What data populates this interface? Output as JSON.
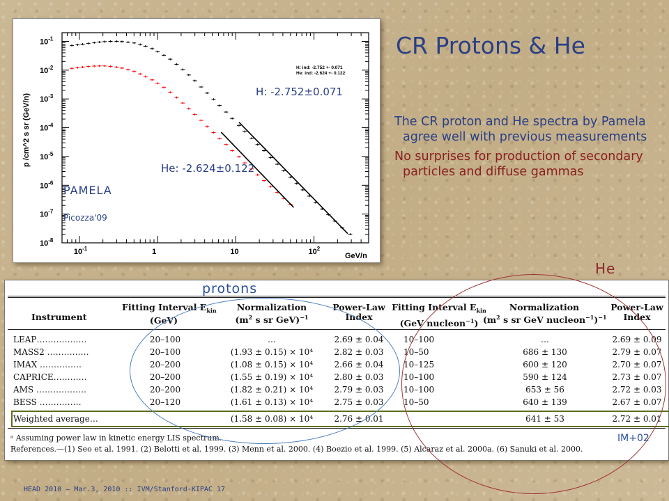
{
  "slide": {
    "title": "CR Protons & He",
    "bullets": [
      "The CR proton and He spectra by Pamela agree well with previous measurements",
      "No surprises for production of secondary particles and diffuse gammas"
    ],
    "footer": "HEAD 2010 – Mar.3, 2010 :: IVM/Stanford-KIPAC 17",
    "colors": {
      "title": "#2a3f86",
      "bullet2": "#8a2020",
      "protons_ring": "#4d7fbf",
      "he_ring": "#a03535",
      "highlight": "#5c6e1e"
    }
  },
  "chart_data": {
    "type": "scatter",
    "ylabel": "p /cm^2 s sr (GeV/n)",
    "xlabel": "GeV/n",
    "x_scale": "log",
    "y_scale": "log",
    "xlim": [
      0.06,
      500
    ],
    "ylim": [
      1e-08,
      0.2
    ],
    "x_ticks": [
      {
        "label": "10",
        "sup": "-1"
      },
      {
        "label": "1",
        "sup": ""
      },
      {
        "label": "10",
        "sup": ""
      },
      {
        "label": "10",
        "sup": "2"
      }
    ],
    "y_ticks": [
      {
        "label": "10",
        "sup": "-1"
      },
      {
        "label": "10",
        "sup": "-2"
      },
      {
        "label": "10",
        "sup": "-3"
      },
      {
        "label": "10",
        "sup": "-4"
      },
      {
        "label": "10",
        "sup": "-5"
      },
      {
        "label": "10",
        "sup": "-6"
      },
      {
        "label": "10",
        "sup": "-7"
      },
      {
        "label": "10",
        "sup": "-8"
      }
    ],
    "legend": {
      "placement": "top-right",
      "lines": [
        "H: ind: -2.752 +- 0.071",
        "He: ind: -2.624 +- 0.122"
      ]
    },
    "annotations": {
      "h_fit": "H: -2.752±0.071",
      "he_fit": "He: -2.624±0.122",
      "experiment": "PAMELA",
      "reference": "Picozza'09"
    },
    "series": [
      {
        "name": "H",
        "color": "#000000",
        "points": [
          [
            0.08,
            0.072
          ],
          [
            0.095,
            0.076
          ],
          [
            0.11,
            0.08
          ],
          [
            0.13,
            0.085
          ],
          [
            0.155,
            0.09
          ],
          [
            0.18,
            0.095
          ],
          [
            0.21,
            0.098
          ],
          [
            0.25,
            0.1
          ],
          [
            0.3,
            0.1
          ],
          [
            0.35,
            0.098
          ],
          [
            0.42,
            0.094
          ],
          [
            0.5,
            0.088
          ],
          [
            0.6,
            0.078
          ],
          [
            0.7,
            0.068
          ],
          [
            0.85,
            0.056
          ],
          [
            1.0,
            0.044
          ],
          [
            1.2,
            0.033
          ],
          [
            1.45,
            0.024
          ],
          [
            1.75,
            0.016
          ],
          [
            2.1,
            0.0105
          ],
          [
            2.5,
            0.0068
          ],
          [
            3.0,
            0.0043
          ],
          [
            3.6,
            0.0026
          ],
          [
            4.3,
            0.0016
          ],
          [
            5.2,
            0.00097
          ],
          [
            6.2,
            0.00059
          ],
          [
            7.5,
            0.00035
          ],
          [
            9.0,
            0.00021
          ],
          [
            11,
            0.00012
          ],
          [
            13,
            7.4e-05
          ],
          [
            16,
            4.3e-05
          ],
          [
            19,
            2.6e-05
          ],
          [
            23,
            1.6e-05
          ],
          [
            28,
            9.2e-06
          ],
          [
            34,
            5.4e-06
          ],
          [
            41,
            3.2e-06
          ],
          [
            50,
            1.9e-06
          ],
          [
            60,
            1.15e-06
          ],
          [
            72,
            6.9e-07
          ],
          [
            87,
            4.2e-07
          ],
          [
            105,
            2.5e-07
          ],
          [
            127,
            1.5e-07
          ],
          [
            153,
            9.5e-08
          ],
          [
            185,
            5.7e-08
          ],
          [
            230,
            3.3e-08
          ],
          [
            290,
            2e-08
          ]
        ],
        "fit": {
          "from": [
            11,
            0.000155
          ],
          "to": [
            270,
            2.1e-08
          ]
        }
      },
      {
        "name": "He",
        "color": "#ff0000",
        "points": [
          [
            0.08,
            0.0115
          ],
          [
            0.095,
            0.0122
          ],
          [
            0.11,
            0.0128
          ],
          [
            0.13,
            0.0134
          ],
          [
            0.155,
            0.0138
          ],
          [
            0.18,
            0.014
          ],
          [
            0.21,
            0.014
          ],
          [
            0.25,
            0.0135
          ],
          [
            0.3,
            0.0128
          ],
          [
            0.35,
            0.0118
          ],
          [
            0.42,
            0.0105
          ],
          [
            0.5,
            0.009
          ],
          [
            0.6,
            0.0074
          ],
          [
            0.7,
            0.006
          ],
          [
            0.85,
            0.0046
          ],
          [
            1.0,
            0.0035
          ],
          [
            1.2,
            0.0025
          ],
          [
            1.45,
            0.0017
          ],
          [
            1.75,
            0.00112
          ],
          [
            2.1,
            0.00072
          ],
          [
            2.5,
            0.00046
          ],
          [
            3.0,
            0.00029
          ],
          [
            3.6,
            0.00018
          ],
          [
            4.3,
            0.00011
          ],
          [
            5.2,
            6.8e-05
          ],
          [
            6.2,
            4.2e-05
          ],
          [
            7.5,
            2.6e-05
          ],
          [
            9.0,
            1.6e-05
          ],
          [
            11,
            9.8e-06
          ],
          [
            13,
            6e-06
          ],
          [
            16,
            3.7e-06
          ],
          [
            19,
            2.3e-06
          ],
          [
            23,
            1.45e-06
          ],
          [
            28,
            9e-07
          ],
          [
            34,
            5.6e-07
          ],
          [
            41,
            3.5e-07
          ],
          [
            50,
            2.2e-07
          ]
        ],
        "fit": {
          "from": [
            6.5,
            7e-05
          ],
          "to": [
            55,
            1.7e-07
          ]
        }
      }
    ]
  },
  "table": {
    "headers": {
      "instrument": "Instrument",
      "p_interval": [
        "Fitting Interval E",
        "kin",
        "(GeV)"
      ],
      "p_norm": [
        "Normalization",
        "(m",
        "2",
        " s sr GeV)",
        "−1"
      ],
      "p_index": [
        "Power-Law",
        "Index"
      ],
      "he_interval": [
        "Fitting Interval E",
        "kin",
        "(GeV nucleon",
        "−1",
        ")"
      ],
      "he_norm": [
        "Normalization",
        "(m",
        "2",
        " s sr GeV nucleon",
        "−1",
        ")",
        "−1"
      ],
      "he_index": [
        "Power-Law",
        "Index"
      ]
    },
    "rows": [
      {
        "instrument": "LEAP………………",
        "p_interval": "20–100",
        "p_norm": "…",
        "p_index": "2.69 ± 0.04",
        "he_interval": "10–100",
        "he_norm": "…",
        "he_index": "2.69 ± 0.09"
      },
      {
        "instrument": "MASS2 ……………",
        "p_interval": "20–100",
        "p_norm": "(1.93 ± 0.15) × 10⁴",
        "p_index": "2.82 ± 0.03",
        "he_interval": "10–50",
        "he_norm": "686 ± 130",
        "he_index": "2.79 ± 0.07"
      },
      {
        "instrument": "IMAX ……………",
        "p_interval": "20–200",
        "p_norm": "(1.08 ± 0.15) × 10⁴",
        "p_index": "2.66 ± 0.04",
        "he_interval": "10–125",
        "he_norm": "600 ± 120",
        "he_index": "2.70 ± 0.07"
      },
      {
        "instrument": "CAPRICE…………",
        "p_interval": "20–200",
        "p_norm": "(1.55 ± 0.19) × 10⁴",
        "p_index": "2.80 ± 0.03",
        "he_interval": "10–100",
        "he_norm": "590 ± 124",
        "he_index": "2.73 ± 0.07"
      },
      {
        "instrument": "AMS ………………",
        "p_interval": "20–200",
        "p_norm": "(1.82 ± 0.21) × 10⁴",
        "p_index": "2.79 ± 0.03",
        "he_interval": "10–100",
        "he_norm": "653 ± 56",
        "he_index": "2.72 ± 0.03"
      },
      {
        "instrument": "BESS ……………",
        "p_interval": "20–120",
        "p_norm": "(1.61 ± 0.13) × 10⁴",
        "p_index": "2.75 ± 0.03",
        "he_interval": "10–50",
        "he_norm": "640 ± 139",
        "he_index": "2.67 ± 0.07"
      }
    ],
    "weighted": {
      "instrument": "Weighted average…",
      "p_norm": "(1.58 ± 0.08) × 10⁴",
      "p_index": "2.76 ± 0.01",
      "he_norm": "641 ± 53",
      "he_index": "2.72 ± 0.01"
    },
    "footnote_a": "ᵃ Assuming power law in kinetic energy LIS spectrum.",
    "references": "References.—(1) Seo et al. 1991. (2) Belotti et al. 1999. (3) Menn et al. 2000. (4) Boezio et al. 1999. (5) Alcaraz et al. 2000a. (6) Sanuki et al. 2000."
  },
  "overlay_labels": {
    "protons": "protons",
    "he": "He",
    "citation": "IM+02"
  }
}
